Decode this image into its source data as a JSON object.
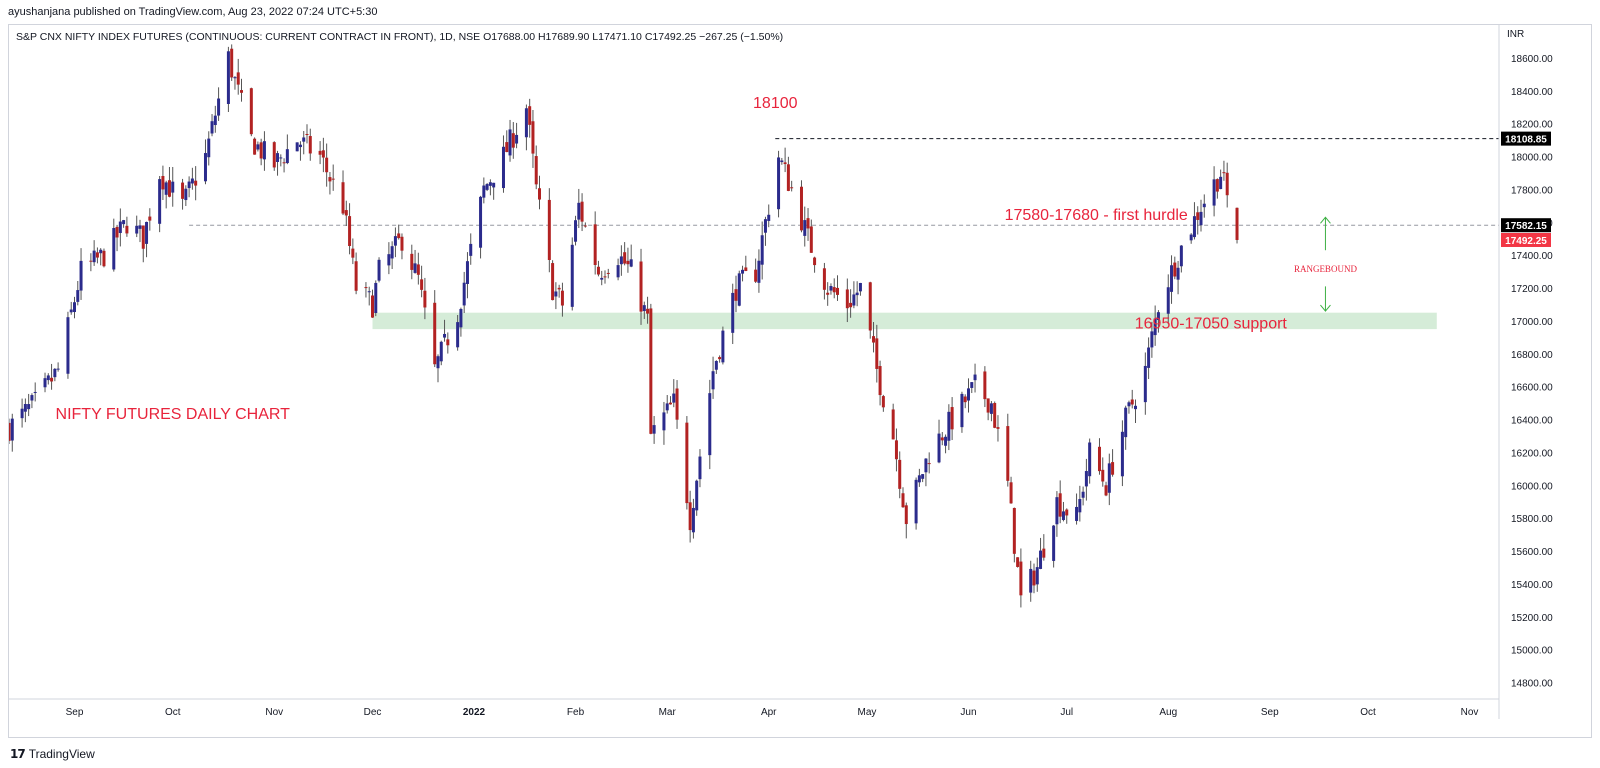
{
  "publisher_line": "ayushanjana published on TradingView.com, Aug 23, 2022 07:24 UTC+5:30",
  "legend_line": "S&P CNX NIFTY INDEX FUTURES (CONTINUOUS: CURRENT CONTRACT IN FRONT), 1D, NSE  O17688.00  H17689.90  L17471.10  C17492.25  −267.25 (−1.50%)",
  "footer": {
    "logo_icon": "tradingview-logo-icon",
    "logo_glyph": "17",
    "brand": "TradingView"
  },
  "colors": {
    "up": "#2b2b8c",
    "down": "#b22222",
    "annotation": "#e8243c",
    "support_zone": "#d5ecd8",
    "arrow": "#3cb043",
    "price_black": "#000000",
    "price_red": "#f23645"
  },
  "chart_data": {
    "type": "candlestick",
    "currency_label": "INR",
    "ylim": [
      14700,
      18800
    ],
    "y_ticks": [
      14800,
      15000,
      15200,
      15400,
      15600,
      15800,
      16000,
      16200,
      16400,
      16600,
      16800,
      17000,
      17200,
      17400,
      17600,
      17800,
      18000,
      18200,
      18400,
      18600
    ],
    "x_ticks": [
      {
        "label": "Sep",
        "date": "2021-09-01"
      },
      {
        "label": "Oct",
        "date": "2021-10-01"
      },
      {
        "label": "Nov",
        "date": "2021-11-01"
      },
      {
        "label": "Dec",
        "date": "2021-12-01"
      },
      {
        "label": "2022",
        "date": "2022-01-01",
        "bold": true
      },
      {
        "label": "Feb",
        "date": "2022-02-01"
      },
      {
        "label": "Mar",
        "date": "2022-03-01"
      },
      {
        "label": "Apr",
        "date": "2022-04-01"
      },
      {
        "label": "May",
        "date": "2022-05-01"
      },
      {
        "label": "Jun",
        "date": "2022-06-01"
      },
      {
        "label": "Jul",
        "date": "2022-07-01"
      },
      {
        "label": "Aug",
        "date": "2022-08-01"
      },
      {
        "label": "Sep",
        "date": "2022-09-01"
      },
      {
        "label": "Oct",
        "date": "2022-10-01"
      },
      {
        "label": "Nov",
        "date": "2022-11-01"
      }
    ],
    "x_range": [
      "2021-08-12",
      "2022-11-10"
    ],
    "anchors": [
      [
        "2021-08-12",
        16350
      ],
      [
        "2021-08-20",
        16500
      ],
      [
        "2021-08-27",
        16700
      ],
      [
        "2021-09-03",
        17300
      ],
      [
        "2021-09-10",
        17400
      ],
      [
        "2021-09-17",
        17600
      ],
      [
        "2021-09-22",
        17500
      ],
      [
        "2021-09-27",
        17900
      ],
      [
        "2021-10-04",
        17700
      ],
      [
        "2021-10-11",
        18000
      ],
      [
        "2021-10-18",
        18600
      ],
      [
        "2021-10-25",
        18100
      ],
      [
        "2021-11-01",
        17950
      ],
      [
        "2021-11-08",
        18100
      ],
      [
        "2021-11-15",
        18000
      ],
      [
        "2021-11-22",
        17700
      ],
      [
        "2021-11-26",
        17200
      ],
      [
        "2021-12-01",
        17100
      ],
      [
        "2021-12-03",
        17300
      ],
      [
        "2021-12-10",
        17500
      ],
      [
        "2021-12-15",
        17250
      ],
      [
        "2021-12-20",
        16700
      ],
      [
        "2021-12-27",
        17050
      ],
      [
        "2022-01-04",
        17800
      ],
      [
        "2022-01-10",
        18000
      ],
      [
        "2022-01-17",
        18300
      ],
      [
        "2022-01-20",
        17800
      ],
      [
        "2022-01-25",
        17200
      ],
      [
        "2022-01-28",
        17100
      ],
      [
        "2022-02-02",
        17700
      ],
      [
        "2022-02-08",
        17300
      ],
      [
        "2022-02-14",
        17400
      ],
      [
        "2022-02-18",
        17300
      ],
      [
        "2022-02-23",
        17000
      ],
      [
        "2022-02-24",
        16300
      ],
      [
        "2022-03-03",
        16500
      ],
      [
        "2022-03-08",
        15800
      ],
      [
        "2022-03-15",
        16700
      ],
      [
        "2022-03-22",
        17200
      ],
      [
        "2022-03-28",
        17300
      ],
      [
        "2022-04-04",
        18000
      ],
      [
        "2022-04-08",
        17800
      ],
      [
        "2022-04-13",
        17500
      ],
      [
        "2022-04-19",
        17200
      ],
      [
        "2022-04-25",
        17100
      ],
      [
        "2022-04-29",
        17200
      ],
      [
        "2022-05-04",
        16700
      ],
      [
        "2022-05-09",
        16300
      ],
      [
        "2022-05-13",
        15800
      ],
      [
        "2022-05-20",
        16200
      ],
      [
        "2022-05-27",
        16400
      ],
      [
        "2022-06-03",
        16600
      ],
      [
        "2022-06-08",
        16500
      ],
      [
        "2022-06-13",
        16000
      ],
      [
        "2022-06-17",
        15300
      ],
      [
        "2022-06-22",
        15500
      ],
      [
        "2022-06-28",
        15900
      ],
      [
        "2022-07-04",
        15800
      ],
      [
        "2022-07-08",
        16200
      ],
      [
        "2022-07-13",
        16000
      ],
      [
        "2022-07-19",
        16400
      ],
      [
        "2022-07-25",
        16700
      ],
      [
        "2022-07-29",
        17100
      ],
      [
        "2022-08-04",
        17400
      ],
      [
        "2022-08-11",
        17700
      ],
      [
        "2022-08-17",
        17900
      ],
      [
        "2022-08-19",
        17750
      ],
      [
        "2022-08-22",
        17492
      ]
    ],
    "hlines": [
      {
        "price": 18108.85,
        "label": "18108.85",
        "style": "dashed",
        "color": "#131722",
        "from": "2022-04-03",
        "badge": "black"
      },
      {
        "price": 17582.15,
        "label": "17582.15",
        "style": "dashed",
        "color": "#9598a1",
        "from": "2021-10-06",
        "badge": "black"
      }
    ],
    "last_price": {
      "value": 17492.25,
      "label": "17492.25"
    },
    "support_zone": {
      "from_price": 16950,
      "to_price": 17050,
      "from_date": "2021-12-01",
      "to_date": "2022-10-22"
    },
    "annotations": [
      {
        "text": "18100",
        "date": "2022-04-03",
        "price": 18320
      },
      {
        "text": "17580-17680 - first hurdle",
        "date": "2022-07-10",
        "price": 17640
      },
      {
        "text": "16950-17050 support",
        "date": "2022-08-14",
        "price": 16980
      },
      {
        "text": "NIFTY FUTURES DAILY CHART",
        "date": "2021-10-01",
        "price": 16430
      },
      {
        "text": "RANGEBOUND",
        "date": "2022-09-18",
        "price": 17310,
        "small": true
      }
    ],
    "arrows": [
      {
        "date": "2022-09-18",
        "from_price": 17430,
        "to_price": 17630
      },
      {
        "date": "2022-09-18",
        "from_price": 17210,
        "to_price": 17060
      }
    ]
  }
}
